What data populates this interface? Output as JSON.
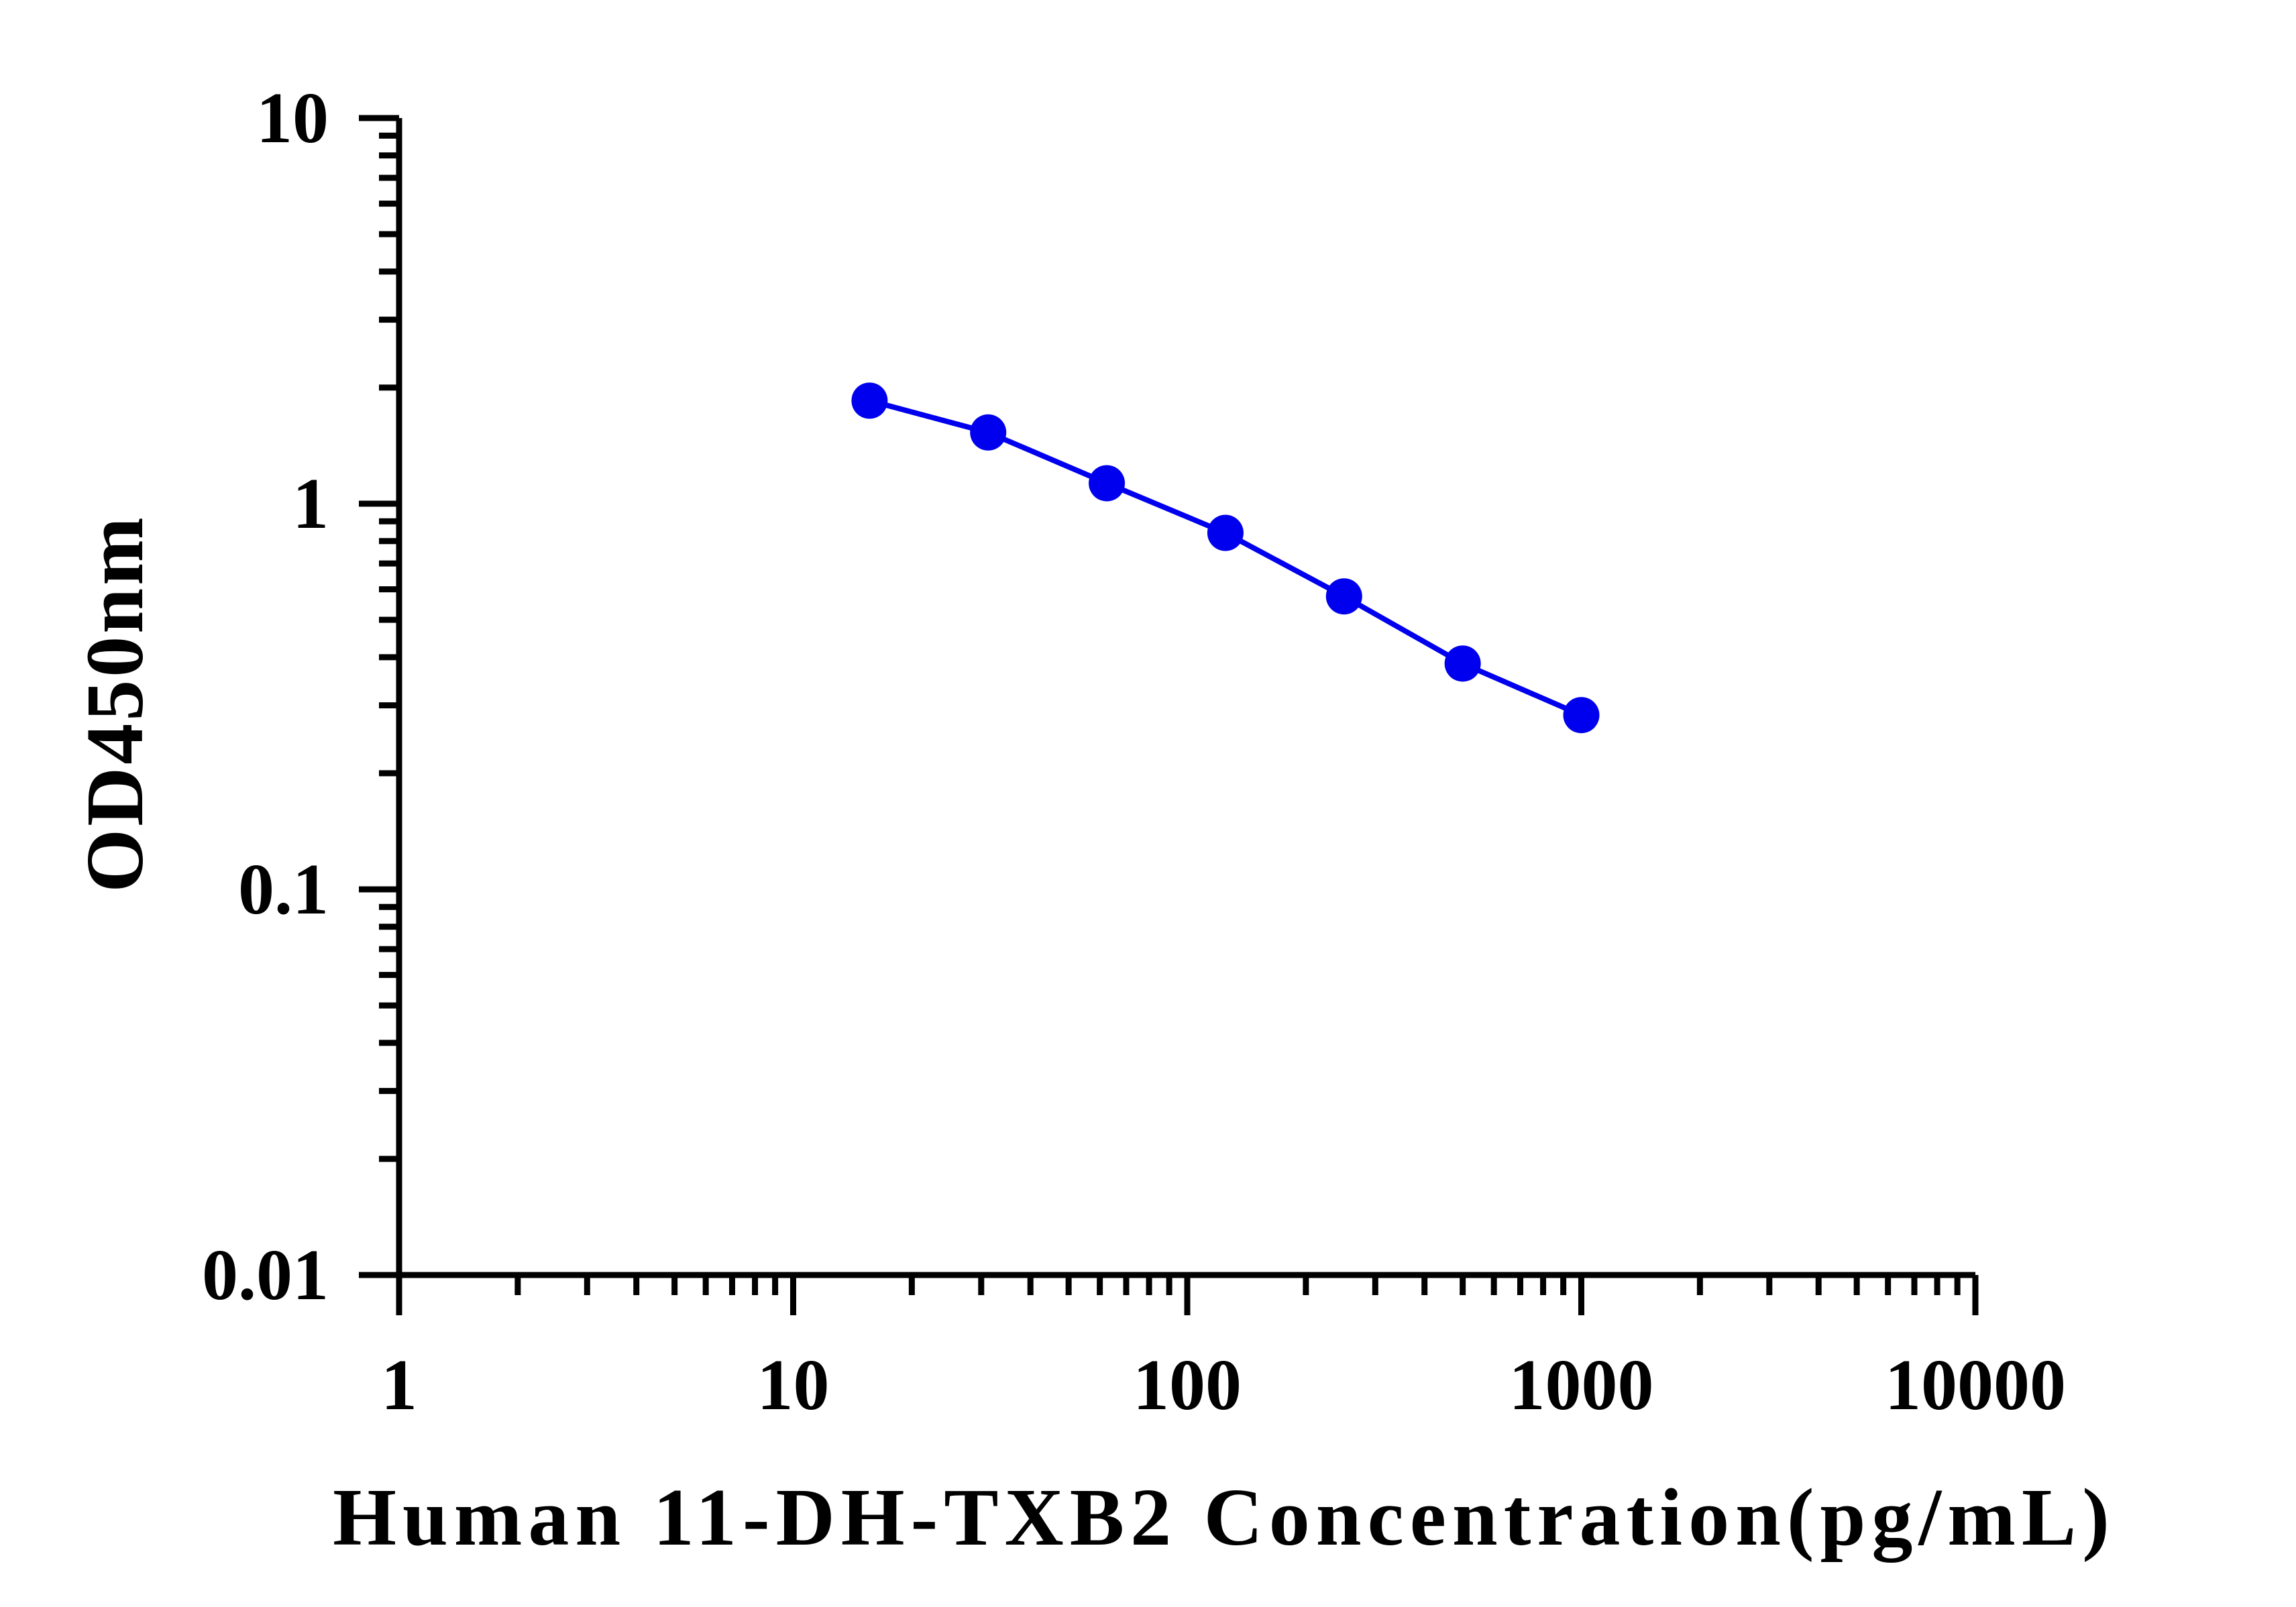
{
  "chart_data": {
    "type": "line",
    "title": "",
    "xlabel": "Human 11-DH-TXB2 Concentration(pg/mL)",
    "ylabel": "OD450nm",
    "x_scale": "log",
    "y_scale": "log",
    "xlim": [
      1,
      10000
    ],
    "ylim": [
      0.01,
      10
    ],
    "x_ticks": [
      "1",
      "10",
      "100",
      "1000",
      "10000"
    ],
    "y_ticks": [
      "0.01",
      "0.1",
      "1",
      "10"
    ],
    "grid": false,
    "legend": "none",
    "series": [
      {
        "color": "#0000ee",
        "marker": "circle",
        "x": [
          15.625,
          31.25,
          62.5,
          125,
          250,
          500,
          1000
        ],
        "y": [
          1.85,
          1.53,
          1.13,
          0.84,
          0.575,
          0.385,
          0.283
        ]
      }
    ]
  }
}
